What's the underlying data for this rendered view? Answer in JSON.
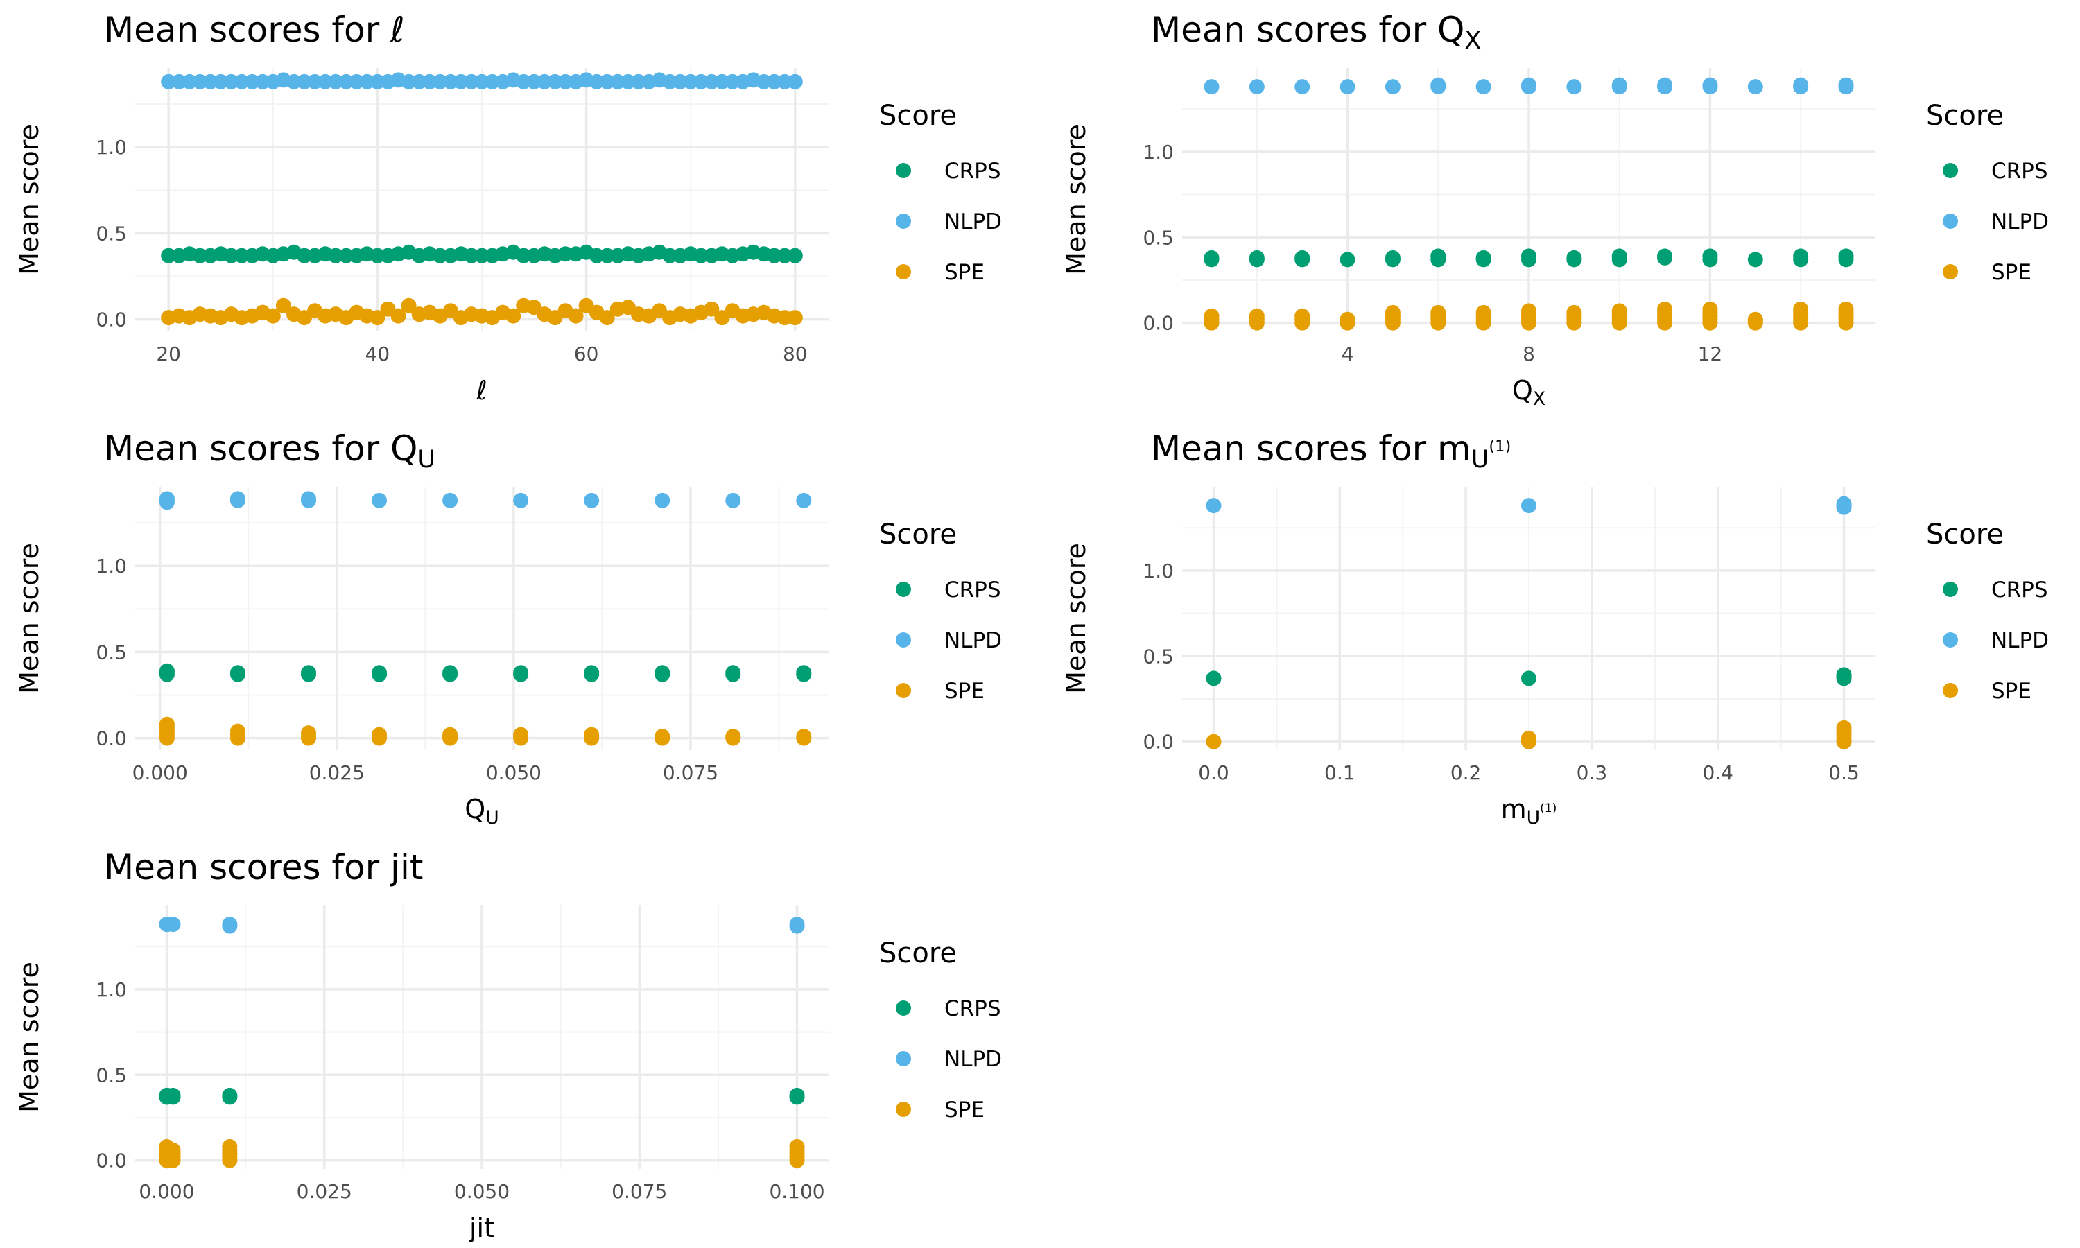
{
  "colors": {
    "CRPS": "#009E73",
    "NLPD": "#56B4E9",
    "SPE": "#E69F00",
    "grid_major": "#ebebeb",
    "grid_minor": "#f3f3f3"
  },
  "legend": {
    "title": "Score",
    "items": [
      "CRPS",
      "NLPD",
      "SPE"
    ],
    "placement": "right"
  },
  "chart_data": [
    {
      "type": "scatter",
      "title": "Mean scores for ℓ",
      "title_main": "Mean scores for ℓ",
      "title_sub": "",
      "title_sup": "",
      "xlabel": "ℓ",
      "xlabel_main": "ℓ",
      "xlabel_sub": "",
      "xlabel_sup": "",
      "ylabel": "Mean score",
      "xlim": [
        16.8,
        83.2
      ],
      "ylim": [
        -0.07,
        1.46
      ],
      "xticks": [
        20,
        40,
        60,
        80
      ],
      "xticklabels": [
        "20",
        "40",
        "60",
        "80"
      ],
      "xminor": [
        30,
        50,
        70
      ],
      "yticks": [
        0,
        0.5,
        1.0
      ],
      "yticklabels": [
        "0.0",
        "0.5",
        "1.0"
      ],
      "yminor": [
        0.25,
        0.75,
        1.25
      ],
      "mode": "sequence",
      "x_start": 20,
      "x_step": 1,
      "x_count": 61,
      "series": [
        {
          "name": "CRPS",
          "values": [
            0.37,
            0.37,
            0.38,
            0.37,
            0.37,
            0.38,
            0.37,
            0.37,
            0.37,
            0.38,
            0.37,
            0.38,
            0.39,
            0.37,
            0.37,
            0.38,
            0.37,
            0.37,
            0.37,
            0.38,
            0.37,
            0.37,
            0.38,
            0.39,
            0.37,
            0.38,
            0.37,
            0.37,
            0.38,
            0.37,
            0.37,
            0.37,
            0.38,
            0.39,
            0.37,
            0.37,
            0.38,
            0.37,
            0.38,
            0.38,
            0.39,
            0.37,
            0.37,
            0.37,
            0.38,
            0.37,
            0.38,
            0.39,
            0.37,
            0.37,
            0.38,
            0.37,
            0.37,
            0.38,
            0.37,
            0.38,
            0.39,
            0.38,
            0.37,
            0.37,
            0.37
          ]
        },
        {
          "name": "NLPD",
          "values": [
            1.38,
            1.38,
            1.38,
            1.38,
            1.38,
            1.38,
            1.38,
            1.38,
            1.38,
            1.38,
            1.38,
            1.39,
            1.38,
            1.38,
            1.38,
            1.38,
            1.38,
            1.38,
            1.38,
            1.38,
            1.38,
            1.38,
            1.39,
            1.38,
            1.38,
            1.38,
            1.38,
            1.38,
            1.38,
            1.38,
            1.38,
            1.38,
            1.38,
            1.39,
            1.38,
            1.38,
            1.38,
            1.38,
            1.38,
            1.38,
            1.39,
            1.38,
            1.38,
            1.38,
            1.38,
            1.38,
            1.38,
            1.39,
            1.38,
            1.38,
            1.38,
            1.38,
            1.38,
            1.38,
            1.38,
            1.38,
            1.39,
            1.38,
            1.38,
            1.38,
            1.38
          ]
        },
        {
          "name": "SPE",
          "values": [
            0.01,
            0.02,
            0.01,
            0.03,
            0.02,
            0.01,
            0.03,
            0.01,
            0.02,
            0.04,
            0.02,
            0.08,
            0.03,
            0.01,
            0.05,
            0.02,
            0.03,
            0.01,
            0.04,
            0.02,
            0.01,
            0.06,
            0.02,
            0.08,
            0.03,
            0.04,
            0.02,
            0.05,
            0.01,
            0.03,
            0.02,
            0.01,
            0.04,
            0.02,
            0.08,
            0.07,
            0.03,
            0.01,
            0.05,
            0.02,
            0.08,
            0.04,
            0.01,
            0.06,
            0.07,
            0.03,
            0.02,
            0.05,
            0.01,
            0.03,
            0.02,
            0.04,
            0.06,
            0.01,
            0.05,
            0.02,
            0.03,
            0.04,
            0.02,
            0.01,
            0.01
          ]
        }
      ]
    },
    {
      "type": "scatter",
      "title": "Mean scores for QX",
      "title_main": "Mean scores for Q",
      "title_sub": "X",
      "title_sup": "",
      "xlabel": "QX",
      "xlabel_main": "Q",
      "xlabel_sub": "X",
      "xlabel_sup": "",
      "ylabel": "Mean score",
      "xlim": [
        0.35,
        15.65
      ],
      "ylim": [
        -0.05,
        1.49
      ],
      "xticks": [
        4,
        8,
        12
      ],
      "xticklabels": [
        "4",
        "8",
        "12"
      ],
      "xminor": [
        2,
        6,
        10,
        14
      ],
      "yticks": [
        0,
        0.5,
        1.0
      ],
      "yticklabels": [
        "0.0",
        "0.5",
        "1.0"
      ],
      "yminor": [
        0.25,
        0.75,
        1.25
      ],
      "mode": "grouped",
      "x": [
        1,
        2,
        3,
        4,
        5,
        6,
        7,
        8,
        9,
        10,
        11,
        12,
        13,
        14,
        15
      ],
      "series": [
        {
          "name": "CRPS",
          "groups": [
            [
              0.37,
              0.38
            ],
            [
              0.37,
              0.38
            ],
            [
              0.37,
              0.38
            ],
            [
              0.37
            ],
            [
              0.37,
              0.38
            ],
            [
              0.37,
              0.39
            ],
            [
              0.37,
              0.38
            ],
            [
              0.37,
              0.39
            ],
            [
              0.37,
              0.38
            ],
            [
              0.37,
              0.39
            ],
            [
              0.38,
              0.39
            ],
            [
              0.37,
              0.39
            ],
            [
              0.37
            ],
            [
              0.37,
              0.39
            ],
            [
              0.37,
              0.39
            ]
          ]
        },
        {
          "name": "NLPD",
          "groups": [
            [
              1.38
            ],
            [
              1.38
            ],
            [
              1.38
            ],
            [
              1.38
            ],
            [
              1.38
            ],
            [
              1.38,
              1.39
            ],
            [
              1.38
            ],
            [
              1.38,
              1.39
            ],
            [
              1.38
            ],
            [
              1.38,
              1.39
            ],
            [
              1.38,
              1.39
            ],
            [
              1.38,
              1.39
            ],
            [
              1.38
            ],
            [
              1.38,
              1.39
            ],
            [
              1.38,
              1.39
            ]
          ]
        },
        {
          "name": "SPE",
          "groups": [
            [
              0.0,
              0.02,
              0.04
            ],
            [
              0.0,
              0.02,
              0.04
            ],
            [
              0.0,
              0.02,
              0.04
            ],
            [
              0.0,
              0.01,
              0.02
            ],
            [
              0.0,
              0.02,
              0.04,
              0.06
            ],
            [
              0.0,
              0.02,
              0.04,
              0.06
            ],
            [
              0.0,
              0.02,
              0.04,
              0.06
            ],
            [
              0.0,
              0.02,
              0.04,
              0.06,
              0.07
            ],
            [
              0.0,
              0.02,
              0.04,
              0.06
            ],
            [
              0.0,
              0.02,
              0.04,
              0.06,
              0.07
            ],
            [
              0.0,
              0.02,
              0.04,
              0.06,
              0.08
            ],
            [
              0.0,
              0.02,
              0.04,
              0.06,
              0.08
            ],
            [
              0.0,
              0.01,
              0.02
            ],
            [
              0.0,
              0.02,
              0.04,
              0.06,
              0.08
            ],
            [
              0.0,
              0.02,
              0.04,
              0.06,
              0.08
            ]
          ]
        }
      ]
    },
    {
      "type": "scatter",
      "title": "Mean scores for QU",
      "title_main": "Mean scores for Q",
      "title_sub": "U",
      "title_sup": "",
      "xlabel": "QU",
      "xlabel_main": "Q",
      "xlabel_sub": "U",
      "xlabel_sup": "",
      "ylabel": "Mean score",
      "xlim": [
        -0.0035,
        0.0945
      ],
      "ylim": [
        -0.07,
        1.46
      ],
      "xticks": [
        0,
        0.025,
        0.05,
        0.075
      ],
      "xticklabels": [
        "0.000",
        "0.025",
        "0.050",
        "0.075"
      ],
      "xminor": [
        0.0125,
        0.0375,
        0.0625,
        0.0875
      ],
      "yticks": [
        0,
        0.5,
        1.0
      ],
      "yticklabels": [
        "0.0",
        "0.5",
        "1.0"
      ],
      "yminor": [
        0.25,
        0.75,
        1.25
      ],
      "mode": "grouped",
      "x": [
        0.001,
        0.011,
        0.021,
        0.031,
        0.041,
        0.051,
        0.061,
        0.071,
        0.081,
        0.091
      ],
      "series": [
        {
          "name": "CRPS",
          "groups": [
            [
              0.37,
              0.38,
              0.39
            ],
            [
              0.37,
              0.38
            ],
            [
              0.37,
              0.38
            ],
            [
              0.37,
              0.38
            ],
            [
              0.37,
              0.38
            ],
            [
              0.37,
              0.38
            ],
            [
              0.37,
              0.38
            ],
            [
              0.37,
              0.38
            ],
            [
              0.37,
              0.38
            ],
            [
              0.37,
              0.38
            ]
          ]
        },
        {
          "name": "NLPD",
          "groups": [
            [
              1.37,
              1.38,
              1.39
            ],
            [
              1.38,
              1.39
            ],
            [
              1.38,
              1.39
            ],
            [
              1.38
            ],
            [
              1.38
            ],
            [
              1.38
            ],
            [
              1.38
            ],
            [
              1.38
            ],
            [
              1.38
            ],
            [
              1.38
            ]
          ]
        },
        {
          "name": "SPE",
          "groups": [
            [
              0.0,
              0.02,
              0.04,
              0.06,
              0.08
            ],
            [
              0.0,
              0.02,
              0.04
            ],
            [
              0.0,
              0.01,
              0.03
            ],
            [
              0.0,
              0.01,
              0.02
            ],
            [
              0.0,
              0.01,
              0.02
            ],
            [
              0.0,
              0.01,
              0.02
            ],
            [
              0.0,
              0.01,
              0.02
            ],
            [
              0.0,
              0.01
            ],
            [
              0.0,
              0.01
            ],
            [
              0.0,
              0.01
            ]
          ]
        }
      ]
    },
    {
      "type": "scatter",
      "title": "Mean scores for mU(1)",
      "title_main": "Mean scores for m",
      "title_sub": "U",
      "title_sup": "(1)",
      "xlabel": "mU(1)",
      "xlabel_main": "m",
      "xlabel_sub": "U",
      "xlabel_sup": "(1)",
      "ylabel": "Mean score",
      "xlim": [
        -0.025,
        0.525
      ],
      "ylim": [
        -0.05,
        1.49
      ],
      "xticks": [
        0,
        0.1,
        0.2,
        0.3,
        0.4,
        0.5
      ],
      "xticklabels": [
        "0.0",
        "0.1",
        "0.2",
        "0.3",
        "0.4",
        "0.5"
      ],
      "xminor": [
        0.05,
        0.15,
        0.25,
        0.35,
        0.45
      ],
      "yticks": [
        0,
        0.5,
        1.0
      ],
      "yticklabels": [
        "0.0",
        "0.5",
        "1.0"
      ],
      "yminor": [
        0.25,
        0.75,
        1.25
      ],
      "mode": "grouped",
      "x": [
        0,
        0.25,
        0.5
      ],
      "series": [
        {
          "name": "CRPS",
          "groups": [
            [
              0.37
            ],
            [
              0.37
            ],
            [
              0.37,
              0.38,
              0.39
            ]
          ]
        },
        {
          "name": "NLPD",
          "groups": [
            [
              1.38
            ],
            [
              1.38
            ],
            [
              1.37,
              1.38,
              1.39
            ]
          ]
        },
        {
          "name": "SPE",
          "groups": [
            [
              0.0
            ],
            [
              0.0,
              0.01,
              0.02
            ],
            [
              0.0,
              0.02,
              0.04,
              0.06,
              0.08
            ]
          ]
        }
      ]
    },
    {
      "type": "scatter",
      "title": "Mean scores for jit",
      "title_main": "Mean scores for jit",
      "title_sub": "",
      "title_sup": "",
      "xlabel": "jit",
      "xlabel_main": "jit",
      "xlabel_sub": "",
      "xlabel_sup": "",
      "ylabel": "Mean score",
      "xlim": [
        -0.005,
        0.105
      ],
      "ylim": [
        -0.05,
        1.49
      ],
      "xticks": [
        0,
        0.025,
        0.05,
        0.075,
        0.1
      ],
      "xticklabels": [
        "0.000",
        "0.025",
        "0.050",
        "0.075",
        "0.100"
      ],
      "xminor": [
        0.0125,
        0.0375,
        0.0625,
        0.0875
      ],
      "yticks": [
        0,
        0.5,
        1.0
      ],
      "yticklabels": [
        "0.0",
        "0.5",
        "1.0"
      ],
      "yminor": [
        0.25,
        0.75,
        1.25
      ],
      "mode": "grouped",
      "x": [
        0,
        0.0001,
        0.001,
        0.01,
        0.1
      ],
      "series": [
        {
          "name": "CRPS",
          "groups": [
            [
              0.37,
              0.38
            ],
            [
              0.37,
              0.38
            ],
            [
              0.37,
              0.38
            ],
            [
              0.37,
              0.38
            ],
            [
              0.37,
              0.38
            ]
          ]
        },
        {
          "name": "NLPD",
          "groups": [
            [
              1.38
            ],
            [
              1.38
            ],
            [
              1.38
            ],
            [
              1.37,
              1.38
            ],
            [
              1.37,
              1.38
            ]
          ]
        },
        {
          "name": "SPE",
          "groups": [
            [
              0.0,
              0.02,
              0.04,
              0.06,
              0.08
            ],
            [
              0.0,
              0.02,
              0.04,
              0.06
            ],
            [
              0.0,
              0.02,
              0.04,
              0.06
            ],
            [
              0.0,
              0.02,
              0.04,
              0.06,
              0.08
            ],
            [
              0.0,
              0.02,
              0.04,
              0.06,
              0.08
            ]
          ]
        }
      ]
    }
  ]
}
